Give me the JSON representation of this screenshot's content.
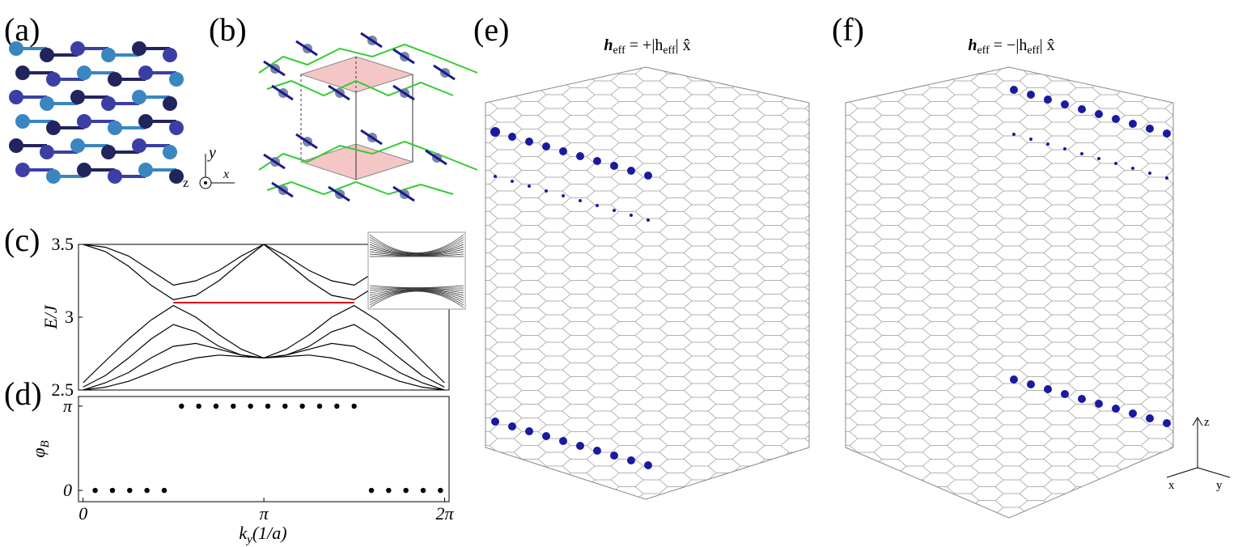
{
  "panels": {
    "a": "(a)",
    "b": "(b)",
    "c": "(c)",
    "d": "(d)",
    "e": "(e)",
    "f": "(f)"
  },
  "axes_b": {
    "x": "x",
    "y": "y",
    "z": "z"
  },
  "axes_f": {
    "x": "x",
    "y": "y",
    "z": "z"
  },
  "panel_e": {
    "title": [
      "h",
      "eff",
      " = +|h",
      "eff",
      "| x̂"
    ]
  },
  "panel_f": {
    "title": [
      "h",
      "eff",
      " = −|h",
      "eff",
      "| x̂"
    ]
  },
  "chart_data": [
    {
      "type": "line",
      "y_label": "E/J",
      "xlim": [
        -0.08,
        6.36
      ],
      "ylim": [
        2.5,
        3.5
      ],
      "yticks": [
        2.5,
        3,
        3.5
      ],
      "x": [
        0,
        0.39,
        0.79,
        1.18,
        1.57,
        1.96,
        2.36,
        2.75,
        3.14,
        3.53,
        3.93,
        4.32,
        4.71,
        5.11,
        5.5,
        5.89,
        6.28
      ],
      "series": [
        {
          "color": "#000000",
          "values": [
            3.5,
            3.45,
            3.35,
            3.22,
            3.12,
            3.15,
            3.25,
            3.38,
            3.5,
            3.38,
            3.25,
            3.15,
            3.12,
            3.22,
            3.35,
            3.45,
            3.5
          ]
        },
        {
          "color": "#000000",
          "values": [
            3.5,
            3.48,
            3.42,
            3.32,
            3.22,
            3.25,
            3.32,
            3.42,
            3.5,
            3.42,
            3.32,
            3.25,
            3.22,
            3.32,
            3.42,
            3.48,
            3.5
          ]
        },
        {
          "color": "#000000",
          "values": [
            2.55,
            2.7,
            2.85,
            2.98,
            3.08,
            3.0,
            2.88,
            2.78,
            2.72,
            2.78,
            2.88,
            3.0,
            3.08,
            2.98,
            2.85,
            2.7,
            2.55
          ]
        },
        {
          "color": "#000000",
          "values": [
            2.52,
            2.6,
            2.72,
            2.85,
            2.95,
            2.9,
            2.8,
            2.74,
            2.72,
            2.74,
            2.8,
            2.9,
            2.95,
            2.85,
            2.72,
            2.6,
            2.52
          ]
        },
        {
          "color": "#000000",
          "values": [
            2.5,
            2.55,
            2.62,
            2.72,
            2.8,
            2.82,
            2.78,
            2.74,
            2.72,
            2.74,
            2.78,
            2.82,
            2.8,
            2.72,
            2.62,
            2.55,
            2.5
          ]
        },
        {
          "color": "#000000",
          "values": [
            2.5,
            2.52,
            2.56,
            2.62,
            2.68,
            2.72,
            2.74,
            2.73,
            2.72,
            2.73,
            2.74,
            2.72,
            2.68,
            2.62,
            2.56,
            2.52,
            2.5
          ]
        },
        {
          "color": "#dd0000",
          "values": [
            null,
            null,
            null,
            null,
            3.1,
            3.1,
            3.1,
            3.1,
            3.1,
            3.1,
            3.1,
            3.1,
            3.1,
            null,
            null,
            null,
            null
          ]
        }
      ]
    },
    {
      "type": "scatter",
      "y_label": [
        "φ",
        "B"
      ],
      "x_label": [
        "k",
        "y",
        "(1/a)"
      ],
      "color": "#000000",
      "xlim": [
        -0.08,
        6.36
      ],
      "ylim": [
        -0.42,
        3.5
      ],
      "xticks": [
        0,
        {
          "value": 3.1416,
          "label": "π"
        },
        {
          "value": 6.2832,
          "label": "2π"
        }
      ],
      "yticks": [
        0,
        {
          "value": 3.1416,
          "label": "π"
        }
      ],
      "x": [
        0.21,
        0.51,
        0.81,
        1.11,
        1.41,
        1.71,
        2.01,
        2.31,
        2.61,
        2.91,
        3.21,
        3.51,
        3.81,
        4.11,
        4.41,
        4.71,
        5.01,
        5.31,
        5.61,
        5.91,
        6.21
      ],
      "values": [
        0,
        0,
        0,
        0,
        0,
        3.14,
        3.14,
        3.14,
        3.14,
        3.14,
        3.14,
        3.14,
        3.14,
        3.14,
        3.14,
        3.14,
        0,
        0,
        0,
        0,
        0
      ]
    }
  ]
}
